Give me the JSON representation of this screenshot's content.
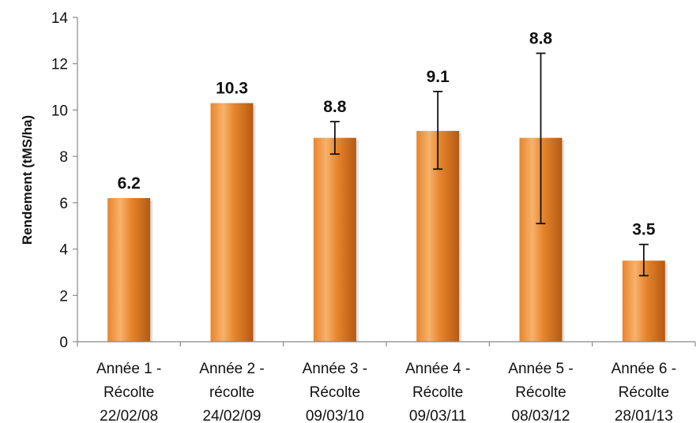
{
  "chart_data": {
    "type": "bar",
    "ylabel": "Rendement (tMS/ha)",
    "ylim": [
      0,
      14
    ],
    "yticks": [
      0,
      2,
      4,
      6,
      8,
      10,
      12,
      14
    ],
    "grid": false,
    "categories": [
      [
        "Année 1 -",
        "Récolte",
        "22/02/08"
      ],
      [
        "Année 2 -",
        "récolte",
        "24/02/09"
      ],
      [
        "Année 3 -",
        "Récolte",
        "09/03/10"
      ],
      [
        "Année 4 -",
        "Récolte",
        "09/03/11"
      ],
      [
        "Année 5 -",
        "Récolte",
        "08/03/12"
      ],
      [
        "Année 6 -",
        "Récolte",
        "28/01/13"
      ]
    ],
    "values": [
      6.2,
      10.3,
      8.8,
      9.1,
      8.8,
      3.5
    ],
    "value_labels": [
      "6.2",
      "10.3",
      "8.8",
      "9.1",
      "8.8",
      "3.5"
    ],
    "error_bars": [
      null,
      null,
      [
        8.1,
        9.5
      ],
      [
        7.45,
        10.8
      ],
      [
        5.1,
        12.45
      ],
      [
        2.85,
        4.2
      ]
    ],
    "colors": {
      "bar_light": "#f6b26b",
      "bar_mid": "#e8852c",
      "bar_dark": "#b45a12",
      "axis": "#888888",
      "text": "#111111"
    }
  }
}
